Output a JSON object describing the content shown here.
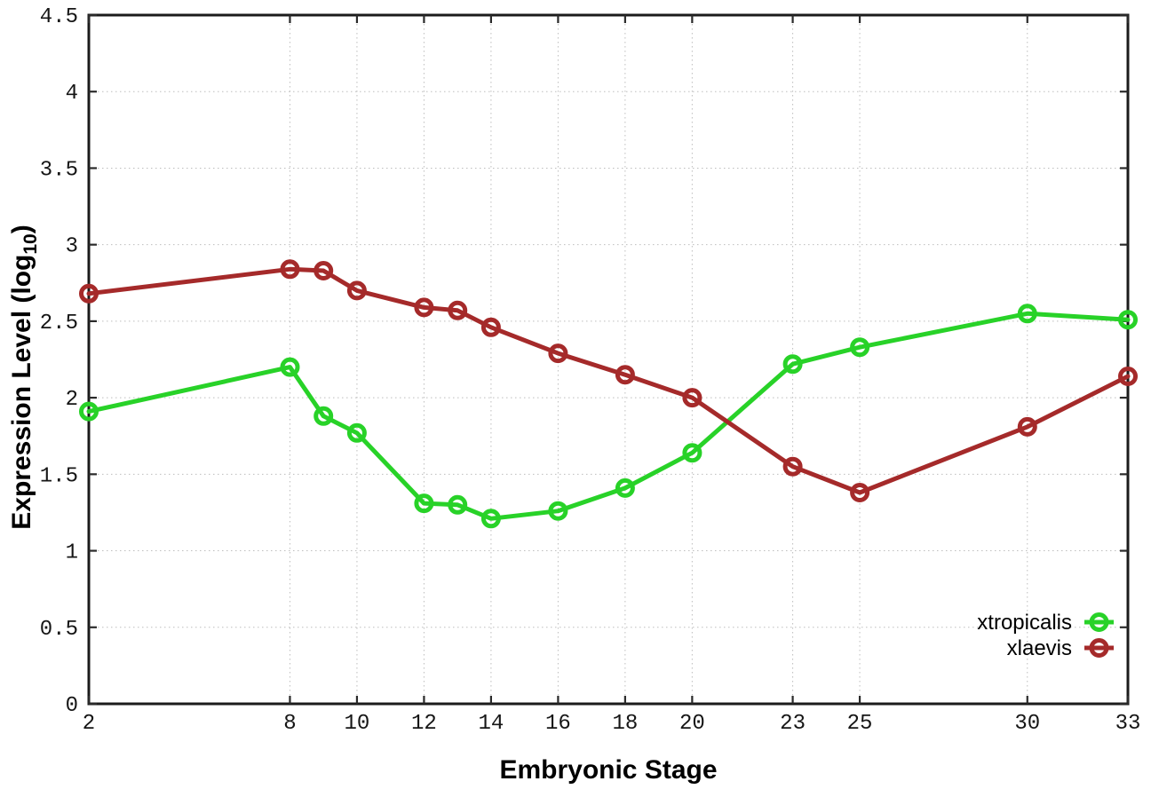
{
  "window": {
    "background": "#ffffff"
  },
  "chart_data": {
    "type": "line",
    "title": "",
    "xlabel": "Embryonic Stage",
    "ylabel": "Expression Level (log10)",
    "ylabel_parts": {
      "prefix": "Expression Level (log",
      "sub": "10",
      "suffix": ")"
    },
    "xlim": [
      2,
      33
    ],
    "ylim": [
      0,
      4.5
    ],
    "grid": true,
    "legend_position": "bottom-right",
    "x": [
      2,
      8,
      9,
      10,
      12,
      13,
      14,
      16,
      18,
      20,
      23,
      25,
      30,
      33
    ],
    "xtick_values": [
      2,
      8,
      10,
      12,
      14,
      16,
      18,
      20,
      23,
      25,
      30,
      33
    ],
    "xtick_labels": [
      "2",
      "8",
      "10",
      "12",
      "14",
      "16",
      "18",
      "20",
      "23",
      "25",
      "30",
      "33"
    ],
    "ytick_values": [
      0,
      0.5,
      1,
      1.5,
      2,
      2.5,
      3,
      3.5,
      4,
      4.5
    ],
    "ytick_labels": [
      "0",
      "0.5",
      "1",
      "1.5",
      "2",
      "2.5",
      "3",
      "3.5",
      "4",
      "4.5"
    ],
    "series": [
      {
        "name": "xtropicalis",
        "color": "#28d228",
        "marker": "open-circle",
        "values": [
          1.91,
          2.2,
          1.88,
          1.77,
          1.31,
          1.3,
          1.21,
          1.26,
          1.41,
          1.64,
          2.22,
          2.33,
          2.55,
          2.51
        ]
      },
      {
        "name": "xlaevis",
        "color": "#a52a2a",
        "marker": "open-circle",
        "values": [
          2.68,
          2.84,
          2.83,
          2.7,
          2.59,
          2.57,
          2.46,
          2.29,
          2.15,
          2.0,
          1.55,
          1.38,
          1.81,
          2.14
        ]
      }
    ]
  }
}
